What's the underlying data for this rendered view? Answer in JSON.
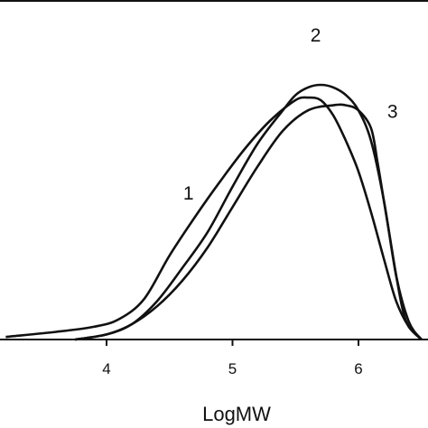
{
  "chart_data": {
    "type": "line",
    "title": "",
    "xlabel": "LogMW",
    "ylabel": "",
    "xlim": [
      3.2,
      6.55
    ],
    "ylim": [
      0,
      1.05
    ],
    "x_ticks": [
      "4",
      "5",
      "6"
    ],
    "grid": false,
    "legend": "none",
    "series": [
      {
        "label": "1",
        "x": [
          3.2,
          3.6,
          3.9,
          4.1,
          4.3,
          4.5,
          4.7,
          4.9,
          5.1,
          5.3,
          5.5,
          5.6,
          5.7,
          5.8,
          5.9,
          6.0,
          6.1,
          6.2,
          6.3,
          6.4,
          6.5
        ],
        "y": [
          0.01,
          0.03,
          0.05,
          0.08,
          0.16,
          0.33,
          0.48,
          0.62,
          0.75,
          0.86,
          0.94,
          0.95,
          0.94,
          0.88,
          0.78,
          0.66,
          0.5,
          0.32,
          0.15,
          0.05,
          0.0
        ]
      },
      {
        "label": "2",
        "x": [
          3.75,
          4.0,
          4.2,
          4.4,
          4.6,
          4.8,
          5.0,
          5.2,
          5.4,
          5.5,
          5.6,
          5.7,
          5.8,
          5.9,
          6.0,
          6.1,
          6.2,
          6.3,
          6.4,
          6.5
        ],
        "y": [
          0.0,
          0.02,
          0.06,
          0.15,
          0.28,
          0.42,
          0.6,
          0.77,
          0.9,
          0.96,
          0.99,
          1.0,
          0.99,
          0.96,
          0.9,
          0.78,
          0.55,
          0.25,
          0.07,
          0.0
        ]
      },
      {
        "label": "3",
        "x": [
          3.75,
          4.0,
          4.2,
          4.4,
          4.6,
          4.8,
          5.0,
          5.2,
          5.4,
          5.6,
          5.8,
          5.9,
          6.0,
          6.1,
          6.15,
          6.2,
          6.25,
          6.3,
          6.35,
          6.4,
          6.5
        ],
        "y": [
          0.0,
          0.02,
          0.06,
          0.13,
          0.23,
          0.36,
          0.52,
          0.68,
          0.82,
          0.9,
          0.92,
          0.92,
          0.9,
          0.83,
          0.7,
          0.55,
          0.4,
          0.25,
          0.12,
          0.05,
          0.0
        ]
      }
    ]
  }
}
